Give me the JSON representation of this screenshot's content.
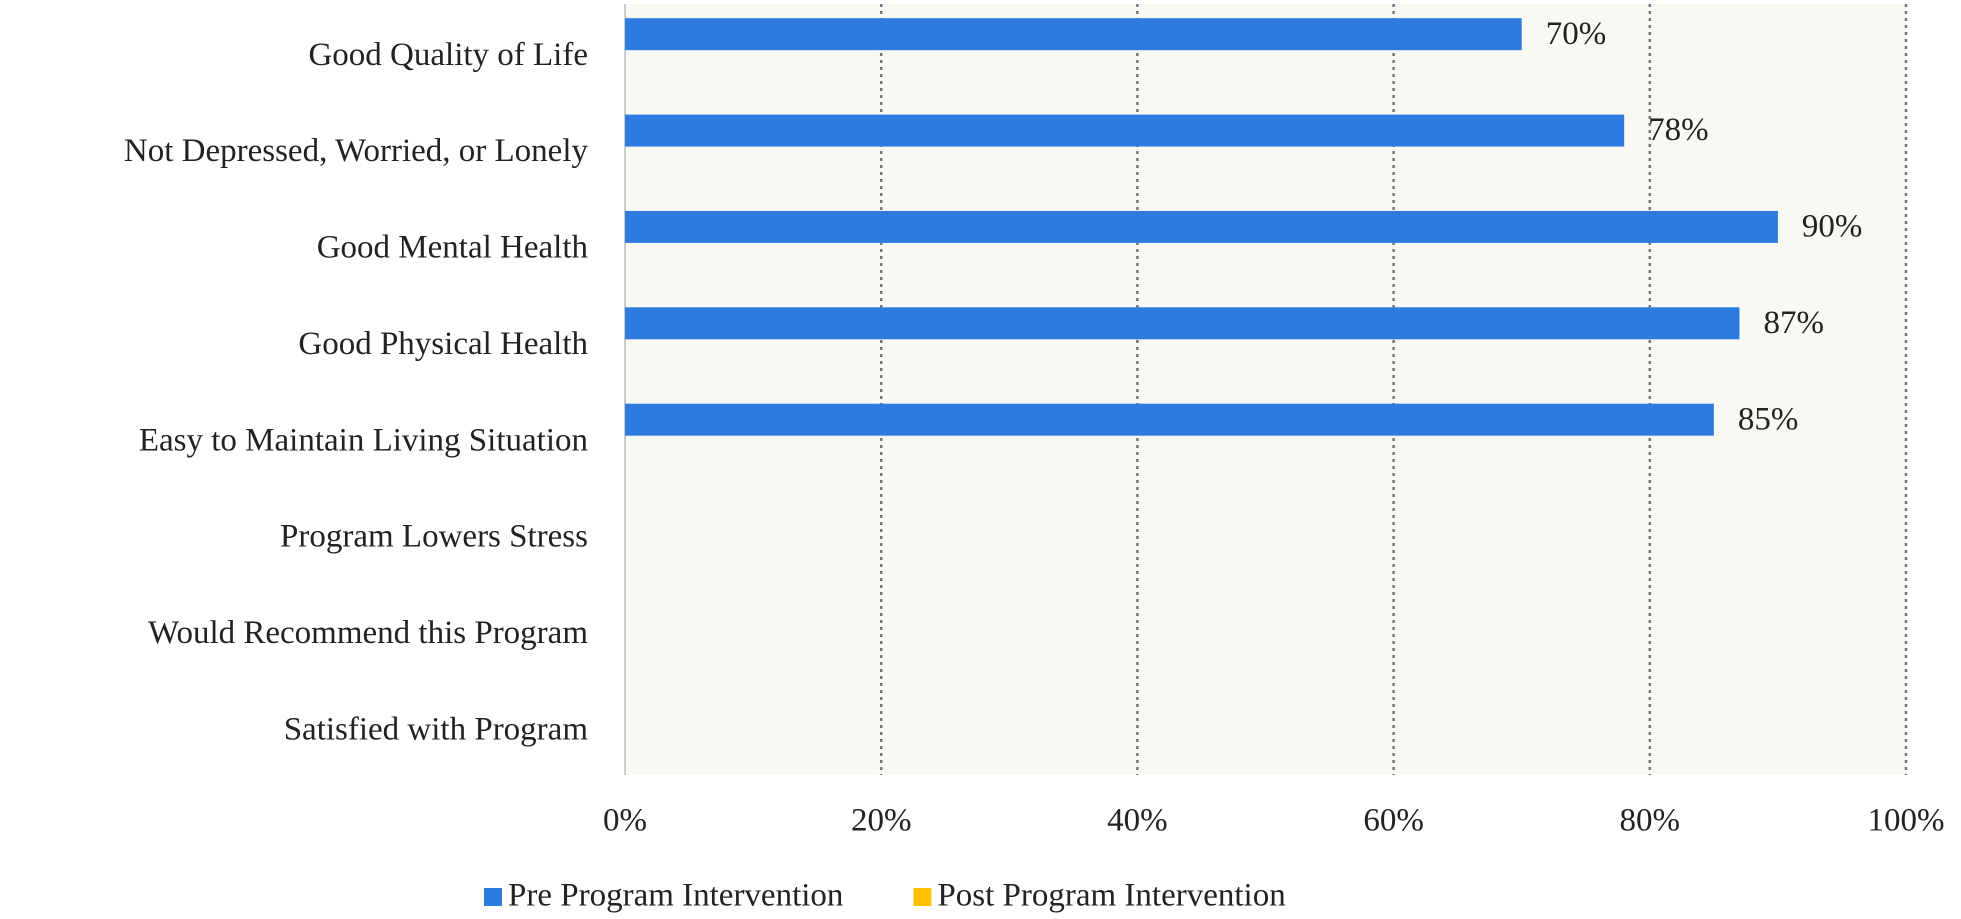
{
  "chart_data": {
    "type": "bar",
    "orientation": "horizontal",
    "categories": [
      "Good Quality of Life",
      "Not Depressed, Worried, or Lonely",
      "Good Mental Health",
      "Good Physical Health",
      "Easy to Maintain Living Situation",
      "Program Lowers Stress",
      "Would Recommend this Program",
      "Satisfied with Program"
    ],
    "series": [
      {
        "name": "Pre Program Intervention",
        "color": "#2e7be0",
        "values": [
          70,
          78,
          90,
          87,
          85,
          null,
          null,
          null
        ],
        "value_labels": [
          "70%",
          "78%",
          "90%",
          "87%",
          "85%",
          null,
          null,
          null
        ]
      },
      {
        "name": "Post Program Intervention",
        "color": "#ffc000",
        "values": [
          null,
          null,
          null,
          null,
          null,
          null,
          null,
          null
        ]
      }
    ],
    "xlim": [
      0,
      100
    ],
    "xticks": [
      {
        "value": 0,
        "label": "0%"
      },
      {
        "value": 20,
        "label": "20%"
      },
      {
        "value": 40,
        "label": "40%"
      },
      {
        "value": 60,
        "label": "60%"
      },
      {
        "value": 80,
        "label": "80%"
      },
      {
        "value": 100,
        "label": "100%"
      }
    ],
    "grid": true,
    "legend": "bottom"
  }
}
